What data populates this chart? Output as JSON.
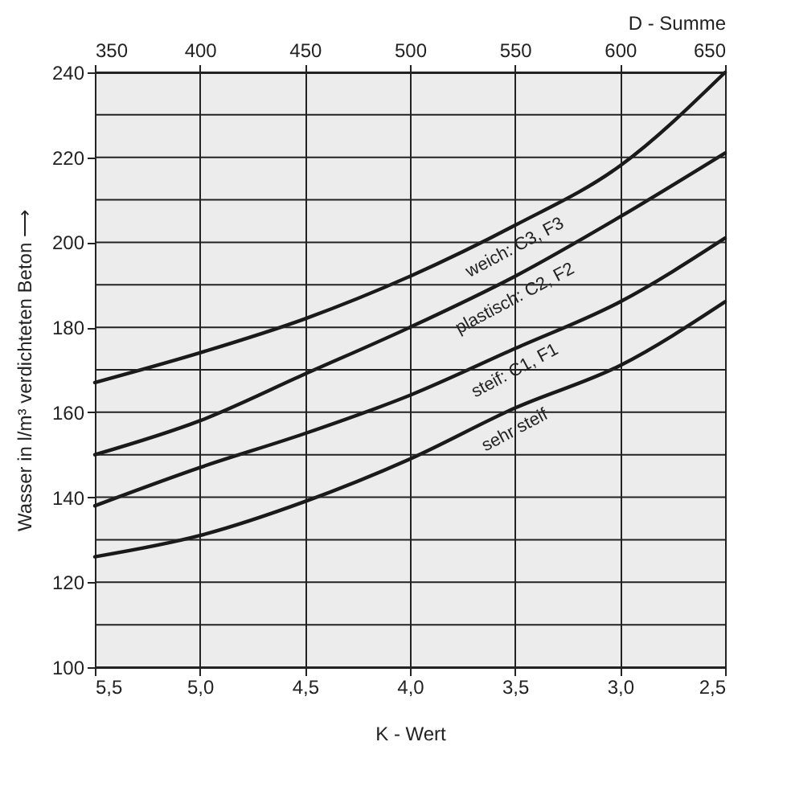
{
  "chart_data": {
    "type": "line",
    "xlabel": "K - Wert",
    "x2label": "D - Summe",
    "ylabel": "Wasser in l/m³ verdichteten Beton ⟶",
    "x": [
      5.5,
      5.0,
      4.5,
      4.0,
      3.5,
      3.0,
      2.5
    ],
    "xlim": [
      5.5,
      2.5
    ],
    "xticks": [
      {
        "value": 5.5,
        "label": "5,5"
      },
      {
        "value": 5.0,
        "label": "5,0"
      },
      {
        "value": 4.5,
        "label": "4,5"
      },
      {
        "value": 4.0,
        "label": "4,0"
      },
      {
        "value": 3.5,
        "label": "3,5"
      },
      {
        "value": 3.0,
        "label": "3,0"
      },
      {
        "value": 2.5,
        "label": "2,5"
      }
    ],
    "x2lim": [
      350,
      650
    ],
    "x2ticks": [
      350,
      400,
      450,
      500,
      550,
      600,
      650
    ],
    "ylim": [
      100,
      240
    ],
    "yticks": [
      100,
      {
        "value": 110,
        "label": null
      },
      120,
      {
        "value": 130,
        "label": null
      },
      140,
      {
        "value": 150,
        "label": null
      },
      160,
      {
        "value": 170,
        "label": null
      },
      180,
      {
        "value": 190,
        "label": null
      },
      200,
      {
        "value": 210,
        "label": null
      },
      220,
      {
        "value": 230,
        "label": null
      },
      240
    ],
    "grid": true,
    "legend": false,
    "marker": "none",
    "line_style": "solid",
    "series": [
      {
        "color": "#1a1a1a",
        "values": [
          167,
          174,
          182,
          192,
          204,
          218,
          240
        ]
      },
      {
        "color": "#1a1a1a",
        "values": [
          150,
          158,
          169,
          180,
          192,
          206,
          221
        ]
      },
      {
        "color": "#1a1a1a",
        "values": [
          138,
          147,
          155,
          164,
          175,
          186,
          201
        ]
      },
      {
        "color": "#1a1a1a",
        "values": [
          126,
          131,
          139,
          149,
          161,
          171,
          186
        ]
      }
    ],
    "annotations": [
      "weich: C3, F3",
      "plastisch: C2, F2",
      "steif: C1, F1",
      "sehr steif"
    ]
  }
}
